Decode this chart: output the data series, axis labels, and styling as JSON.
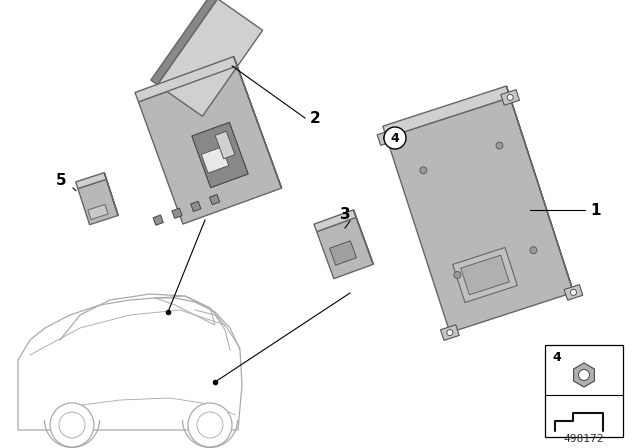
{
  "background_color": "#ffffff",
  "part_number": "498172",
  "line_color": "#000000",
  "part_color_face": "#b8b8b8",
  "part_color_top": "#d0d0d0",
  "part_color_side": "#989898",
  "part_color_dark": "#888888"
}
